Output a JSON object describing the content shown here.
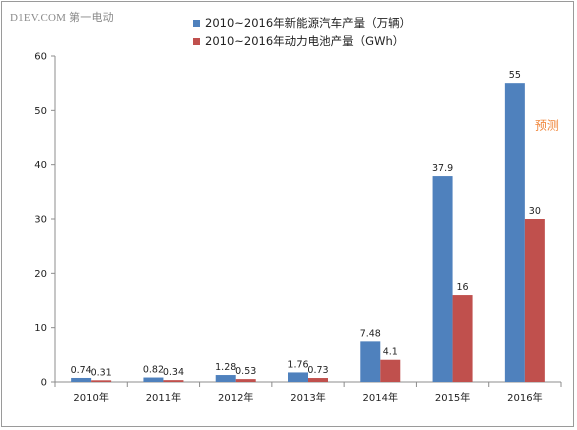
{
  "watermark": "D1EV.COM 第一电动",
  "chart_data": {
    "type": "bar",
    "categories": [
      "2010年",
      "2011年",
      "2012年",
      "2013年",
      "2014年",
      "2015年",
      "2016年"
    ],
    "series": [
      {
        "name": "2010~2016年新能源汽车产量（万辆）",
        "color": "#4f81bd",
        "values": [
          0.74,
          0.82,
          1.28,
          1.76,
          7.48,
          37.9,
          55
        ]
      },
      {
        "name": "2010~2016年动力电池产量（GWh）",
        "color": "#c0504d",
        "values": [
          0.31,
          0.34,
          0.53,
          0.73,
          4.1,
          16,
          30
        ]
      }
    ],
    "data_labels": [
      [
        "0.74",
        "0.82",
        "1.28",
        "1.76",
        "7.48",
        "37.9",
        "55"
      ],
      [
        "0.31",
        "0.34",
        "0.53",
        "0.73",
        "4.1",
        "16",
        "30"
      ]
    ],
    "ylim": [
      0,
      60
    ],
    "yticks": [
      0,
      10,
      20,
      30,
      40,
      50,
      60
    ],
    "annotation": "预测",
    "legend_position": "top",
    "grid": false
  }
}
